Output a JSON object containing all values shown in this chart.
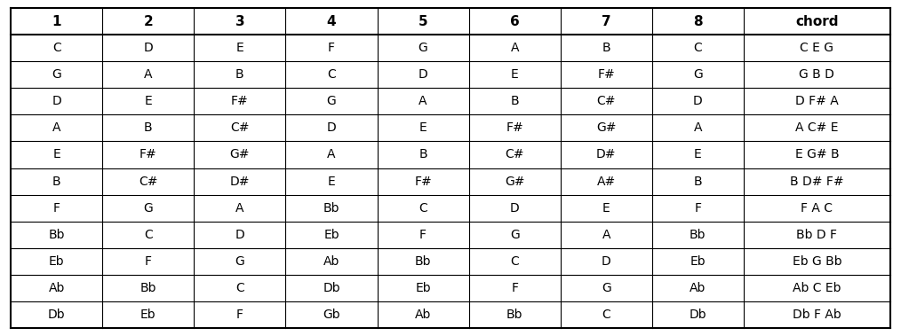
{
  "headers": [
    "1",
    "2",
    "3",
    "4",
    "5",
    "6",
    "7",
    "8",
    "chord"
  ],
  "rows": [
    [
      "C",
      "D",
      "E",
      "F",
      "G",
      "A",
      "B",
      "C",
      "C E G"
    ],
    [
      "G",
      "A",
      "B",
      "C",
      "D",
      "E",
      "F#",
      "G",
      "G B D"
    ],
    [
      "D",
      "E",
      "F#",
      "G",
      "A",
      "B",
      "C#",
      "D",
      "D F# A"
    ],
    [
      "A",
      "B",
      "C#",
      "D",
      "E",
      "F#",
      "G#",
      "A",
      "A C# E"
    ],
    [
      "E",
      "F#",
      "G#",
      "A",
      "B",
      "C#",
      "D#",
      "E",
      "E G# B"
    ],
    [
      "B",
      "C#",
      "D#",
      "E",
      "F#",
      "G#",
      "A#",
      "B",
      "B D# F#"
    ],
    [
      "F",
      "G",
      "A",
      "Bb",
      "C",
      "D",
      "E",
      "F",
      "F A C"
    ],
    [
      "Bb",
      "C",
      "D",
      "Eb",
      "F",
      "G",
      "A",
      "Bb",
      "Bb D F"
    ],
    [
      "Eb",
      "F",
      "G",
      "Ab",
      "Bb",
      "C",
      "D",
      "Eb",
      "Eb G Bb"
    ],
    [
      "Ab",
      "Bb",
      "C",
      "Db",
      "Eb",
      "F",
      "G",
      "Ab",
      "Ab C Eb"
    ],
    [
      "Db",
      "Eb",
      "F",
      "Gb",
      "Ab",
      "Bb",
      "C",
      "Db",
      "Db F Ab"
    ]
  ],
  "header_font_size": 11,
  "cell_font_size": 10,
  "line_color": "#000000",
  "text_color": "#000000",
  "col_widths": [
    1,
    1,
    1,
    1,
    1,
    1,
    1,
    1,
    1.6
  ],
  "figure_width": 10.14,
  "figure_height": 3.79,
  "outer_border_lw": 1.5,
  "inner_border_lw": 0.8
}
